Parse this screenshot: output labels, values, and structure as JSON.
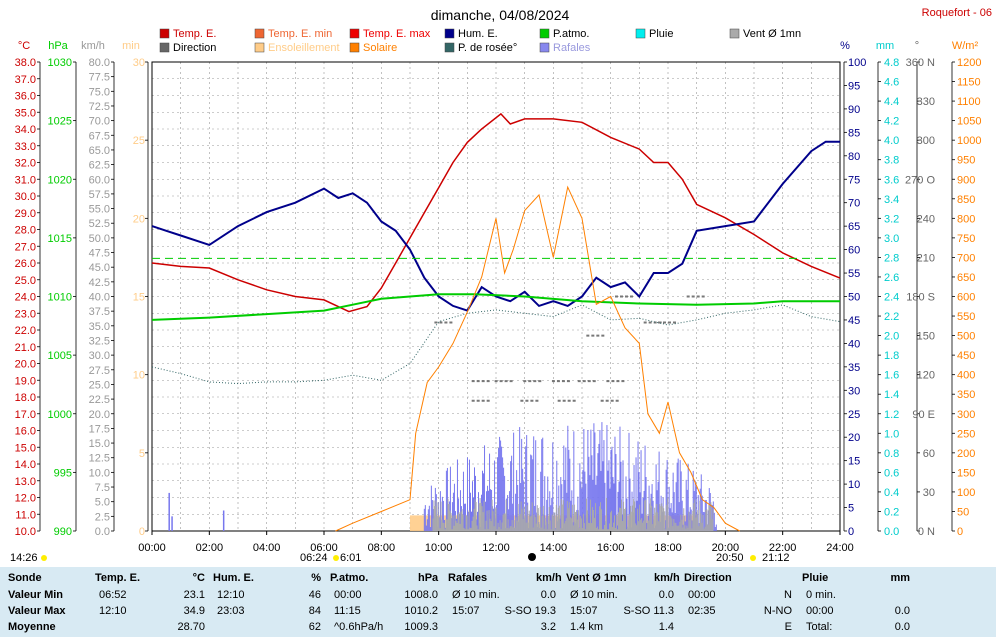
{
  "title": "dimanche, 04/08/2024",
  "station": "Roquefort - 06",
  "colors": {
    "temp": "#cc0000",
    "hum": "#00008b",
    "press": "#00cc00",
    "rain": "#00cccc",
    "solar": "#ff8000",
    "dew": "#336666",
    "gust": "#7777ee",
    "wind": "#aaaaaa",
    "grid": "#999999",
    "tick": "#333333",
    "sunshine": "#ffcc88"
  },
  "legend": [
    {
      "label": "Temp. E.",
      "color": "#cc0000"
    },
    {
      "label": "Temp. E. min",
      "color": "#ee6633"
    },
    {
      "label": "Temp. E. max",
      "color": "#ee0000"
    },
    {
      "label": "Hum. E.",
      "color": "#00008b"
    },
    {
      "label": "P.atmo.",
      "color": "#00cc00"
    },
    {
      "label": "Pluie",
      "color": "#00eeee"
    },
    {
      "label": "Vent Ø 1mn",
      "color": "#aaaaaa"
    },
    {
      "label": "Direction",
      "color": "#666666"
    },
    {
      "label": "Ensoleillement",
      "color": "#ffcc88"
    },
    {
      "label": "Solaire",
      "color": "#ff8000"
    },
    {
      "label": "P. de rosée°",
      "color": "#336666"
    },
    {
      "label": "Rafales",
      "color": "#8888ee"
    }
  ],
  "axis_units": {
    "temp": "°C",
    "press": "hPa",
    "wind": "km/h",
    "min": "min",
    "hum": "%",
    "rain": "mm",
    "dir": "°",
    "solar": "W/m²"
  },
  "axes": {
    "temp": [
      "38.0",
      "37.0",
      "36.0",
      "35.0",
      "34.0",
      "33.0",
      "32.0",
      "31.0",
      "30.0",
      "29.0",
      "28.0",
      "27.0",
      "26.0",
      "25.0",
      "24.0",
      "23.0",
      "22.0",
      "21.0",
      "20.0",
      "19.0",
      "18.0",
      "17.0",
      "16.0",
      "15.0",
      "14.0",
      "13.0",
      "12.0",
      "11.0",
      "10.0"
    ],
    "press": [
      "1030",
      "1025",
      "1020",
      "1015",
      "1010",
      "1005",
      "1000",
      "995",
      "990"
    ],
    "wind": [
      "80.0",
      "77.5",
      "75.0",
      "72.5",
      "70.0",
      "67.5",
      "65.0",
      "62.5",
      "60.0",
      "57.5",
      "55.0",
      "52.5",
      "50.0",
      "47.5",
      "45.0",
      "42.5",
      "40.0",
      "37.5",
      "35.0",
      "32.5",
      "30.0",
      "27.5",
      "25.0",
      "22.5",
      "20.0",
      "17.5",
      "15.0",
      "12.5",
      "10.0",
      "7.5",
      "5.0",
      "2.5",
      "0.0"
    ],
    "min": [
      "30",
      "25",
      "20",
      "15",
      "10",
      "5",
      "0"
    ],
    "hum": [
      "100",
      "95",
      "90",
      "85",
      "80",
      "75",
      "70",
      "65",
      "60",
      "55",
      "50",
      "45",
      "40",
      "35",
      "30",
      "25",
      "20",
      "15",
      "10",
      "5",
      "0"
    ],
    "rain": [
      "4.8",
      "4.6",
      "4.4",
      "4.2",
      "4.0",
      "3.8",
      "3.6",
      "3.4",
      "3.2",
      "3.0",
      "2.8",
      "2.6",
      "2.4",
      "2.2",
      "2.0",
      "1.8",
      "1.6",
      "1.4",
      "1.2",
      "1.0",
      "0.8",
      "0.6",
      "0.4",
      "0.2",
      "0.0"
    ],
    "dir": [
      "360 N",
      "330",
      "300",
      "270 O",
      "240",
      "210",
      "180 S",
      "150",
      "120",
      "90 E",
      "60",
      "30",
      "0 N"
    ],
    "solar": [
      "1200",
      "1150",
      "1100",
      "1050",
      "1000",
      "950",
      "900",
      "850",
      "800",
      "750",
      "700",
      "650",
      "600",
      "550",
      "500",
      "450",
      "400",
      "350",
      "300",
      "250",
      "200",
      "150",
      "100",
      "50",
      "0"
    ]
  },
  "time_labels": [
    "00:00",
    "02:00",
    "04:00",
    "06:00",
    "08:00",
    "10:00",
    "12:00",
    "14:00",
    "16:00",
    "18:00",
    "20:00",
    "22:00",
    "24:00"
  ],
  "sun": {
    "left": "14:26",
    "sunrise": "06:24",
    "sunrise_b": "6:01",
    "sunset": "20:50",
    "sunset_b": "21:12"
  },
  "chart_data": {
    "type": "line",
    "x_unit": "hours",
    "series": [
      {
        "name": "Temp. E.",
        "axis": "temp",
        "points": [
          [
            0,
            26.0
          ],
          [
            1,
            25.8
          ],
          [
            2,
            25.7
          ],
          [
            3,
            25.0
          ],
          [
            4,
            24.4
          ],
          [
            5,
            24.0
          ],
          [
            6,
            23.8
          ],
          [
            6.87,
            23.1
          ],
          [
            7.5,
            23.4
          ],
          [
            8,
            24.5
          ],
          [
            8.5,
            26.0
          ],
          [
            9,
            27.5
          ],
          [
            9.5,
            29.0
          ],
          [
            10,
            30.5
          ],
          [
            10.5,
            32.0
          ],
          [
            11,
            33.2
          ],
          [
            11.5,
            34.0
          ],
          [
            12.17,
            34.9
          ],
          [
            12.5,
            34.3
          ],
          [
            13,
            34.6
          ],
          [
            14,
            34.6
          ],
          [
            15,
            34.4
          ],
          [
            16,
            33.5
          ],
          [
            17,
            32.8
          ],
          [
            17.5,
            32.0
          ],
          [
            18,
            32.0
          ],
          [
            18.5,
            31.0
          ],
          [
            19,
            29.5
          ],
          [
            20,
            28.7
          ],
          [
            21,
            27.7
          ],
          [
            22,
            26.6
          ],
          [
            23,
            25.8
          ],
          [
            24,
            25.1
          ]
        ]
      },
      {
        "name": "Hum. E.",
        "axis": "hum",
        "points": [
          [
            0,
            65
          ],
          [
            0.5,
            64
          ],
          [
            1,
            63
          ],
          [
            2,
            61
          ],
          [
            3,
            65
          ],
          [
            4,
            68
          ],
          [
            5,
            70
          ],
          [
            6,
            73
          ],
          [
            6.5,
            71
          ],
          [
            7,
            72
          ],
          [
            7.5,
            70
          ],
          [
            8,
            66
          ],
          [
            8.5,
            64
          ],
          [
            9,
            60
          ],
          [
            9.5,
            54
          ],
          [
            10,
            50
          ],
          [
            10.5,
            48
          ],
          [
            11,
            47
          ],
          [
            11.5,
            52
          ],
          [
            12,
            50
          ],
          [
            12.5,
            49
          ],
          [
            13,
            51
          ],
          [
            13.5,
            48
          ],
          [
            14,
            49
          ],
          [
            14.5,
            48
          ],
          [
            15,
            50
          ],
          [
            15.5,
            54
          ],
          [
            16,
            52
          ],
          [
            16.5,
            53
          ],
          [
            17,
            50
          ],
          [
            17.5,
            55
          ],
          [
            18,
            55
          ],
          [
            18.5,
            57
          ],
          [
            19,
            64
          ],
          [
            20,
            65
          ],
          [
            21,
            66
          ],
          [
            22,
            74
          ],
          [
            23,
            81
          ],
          [
            23.5,
            83
          ],
          [
            24,
            83
          ]
        ]
      },
      {
        "name": "P.atmo.",
        "axis": "press",
        "points": [
          [
            0,
            1008.0
          ],
          [
            2,
            1008.2
          ],
          [
            4,
            1008.5
          ],
          [
            6,
            1008.8
          ],
          [
            7,
            1009.3
          ],
          [
            8,
            1009.8
          ],
          [
            10,
            1010.2
          ],
          [
            11.25,
            1010.2
          ],
          [
            13,
            1010.0
          ],
          [
            15,
            1009.6
          ],
          [
            17,
            1009.4
          ],
          [
            19,
            1009.3
          ],
          [
            21,
            1009.4
          ],
          [
            22,
            1009.6
          ],
          [
            24,
            1009.6
          ]
        ]
      },
      {
        "name": "P. de rosée°",
        "axis": "temp",
        "points": [
          [
            0,
            19.8
          ],
          [
            1,
            19.4
          ],
          [
            2,
            18.9
          ],
          [
            3,
            18.8
          ],
          [
            4,
            18.9
          ],
          [
            5,
            18.9
          ],
          [
            6,
            19.0
          ],
          [
            7,
            19.3
          ],
          [
            8,
            19.0
          ],
          [
            9,
            20.0
          ],
          [
            10,
            22.5
          ],
          [
            11,
            23.0
          ],
          [
            12,
            23.2
          ],
          [
            13,
            23.0
          ],
          [
            14,
            22.8
          ],
          [
            15,
            23.5
          ],
          [
            16,
            22.6
          ],
          [
            17,
            22.7
          ],
          [
            18,
            22.3
          ],
          [
            19,
            22.6
          ],
          [
            20,
            23.0
          ],
          [
            21,
            23.2
          ],
          [
            22,
            23.5
          ],
          [
            23,
            22.8
          ],
          [
            24,
            22.5
          ]
        ]
      },
      {
        "name": "Solaire",
        "axis": "solar",
        "points": [
          [
            6.4,
            0
          ],
          [
            7,
            20
          ],
          [
            8,
            50
          ],
          [
            9,
            80
          ],
          [
            9.2,
            250
          ],
          [
            9.6,
            380
          ],
          [
            10,
            420
          ],
          [
            10.5,
            480
          ],
          [
            11,
            560
          ],
          [
            11.5,
            650
          ],
          [
            12,
            800
          ],
          [
            12.3,
            660
          ],
          [
            12.6,
            720
          ],
          [
            13,
            820
          ],
          [
            13.5,
            860
          ],
          [
            14,
            700
          ],
          [
            14.5,
            880
          ],
          [
            15,
            800
          ],
          [
            15.5,
            580
          ],
          [
            16,
            600
          ],
          [
            16.5,
            520
          ],
          [
            17,
            480
          ],
          [
            17.3,
            300
          ],
          [
            17.7,
            250
          ],
          [
            18,
            330
          ],
          [
            18.4,
            200
          ],
          [
            18.8,
            150
          ],
          [
            19.2,
            80
          ],
          [
            19.6,
            60
          ],
          [
            20,
            20
          ],
          [
            20.5,
            0
          ]
        ]
      }
    ],
    "sunshine_minutes": {
      "axis": "min",
      "from": 9.0,
      "to": 19.0,
      "value": 1.0
    },
    "gusts_kmh": {
      "from": 9.5,
      "to": 19.7,
      "max": 19.3
    },
    "wind_avg_kmh": {
      "from": 9.8,
      "to": 19.6,
      "max": 11.3
    },
    "direction_marks_deg": [
      [
        11.5,
        115
      ],
      [
        12.3,
        115
      ],
      [
        13.3,
        115
      ],
      [
        14.3,
        115
      ],
      [
        15.2,
        115
      ],
      [
        16.2,
        115
      ],
      [
        13.2,
        100
      ],
      [
        14.5,
        100
      ],
      [
        11.5,
        100
      ],
      [
        16.0,
        100
      ],
      [
        10.2,
        160
      ],
      [
        17.5,
        160
      ],
      [
        15.5,
        150
      ],
      [
        18.0,
        160
      ],
      [
        16.5,
        180
      ],
      [
        19.0,
        180
      ]
    ],
    "night_marks_kmh": [
      [
        0.6,
        6.5
      ],
      [
        0.7,
        2.5
      ],
      [
        2.5,
        3.5
      ]
    ]
  },
  "table": [
    {
      "header": "Sonde",
      "unit": "",
      "rows": [
        "Valeur Min",
        "Valeur Max",
        "Moyenne"
      ]
    },
    {
      "header": "Temp. E.",
      "unit": "°C",
      "rows": [
        [
          "06:52",
          "23.1"
        ],
        [
          "12:10",
          "34.9"
        ],
        [
          "",
          "28.70"
        ]
      ]
    },
    {
      "header": "Hum. E.",
      "unit": "%",
      "rows": [
        [
          "12:10",
          "46"
        ],
        [
          "23:03",
          "84"
        ],
        [
          "",
          "62"
        ]
      ]
    },
    {
      "header": "P.atmo.",
      "unit": "hPa",
      "rows": [
        [
          "00:00",
          "1008.0"
        ],
        [
          "11:15",
          "1010.2"
        ],
        [
          "^0.6hPa/h",
          "1009.3"
        ]
      ]
    },
    {
      "header": "Rafales",
      "unit": "km/h",
      "rows": [
        [
          "Ø 10 min.",
          "0.0"
        ],
        [
          "15:07",
          "S-SO 19.3"
        ],
        [
          "",
          "3.2"
        ]
      ]
    },
    {
      "header": "Vent Ø 1mn",
      "unit": "km/h",
      "rows": [
        [
          "Ø 10 min.",
          "0.0"
        ],
        [
          "15:07",
          "S-SO 11.3"
        ],
        [
          "1.4 km",
          "1.4"
        ]
      ]
    },
    {
      "header": "Direction",
      "unit": "",
      "rows": [
        [
          "00:00",
          "N"
        ],
        [
          "02:35",
          "N-NO"
        ],
        [
          "",
          "E"
        ]
      ]
    },
    {
      "header": "Pluie",
      "unit": "mm",
      "rows": [
        [
          "0 min.",
          ""
        ],
        [
          "00:00",
          "0.0"
        ],
        [
          "Total:",
          "0.0"
        ]
      ]
    }
  ]
}
